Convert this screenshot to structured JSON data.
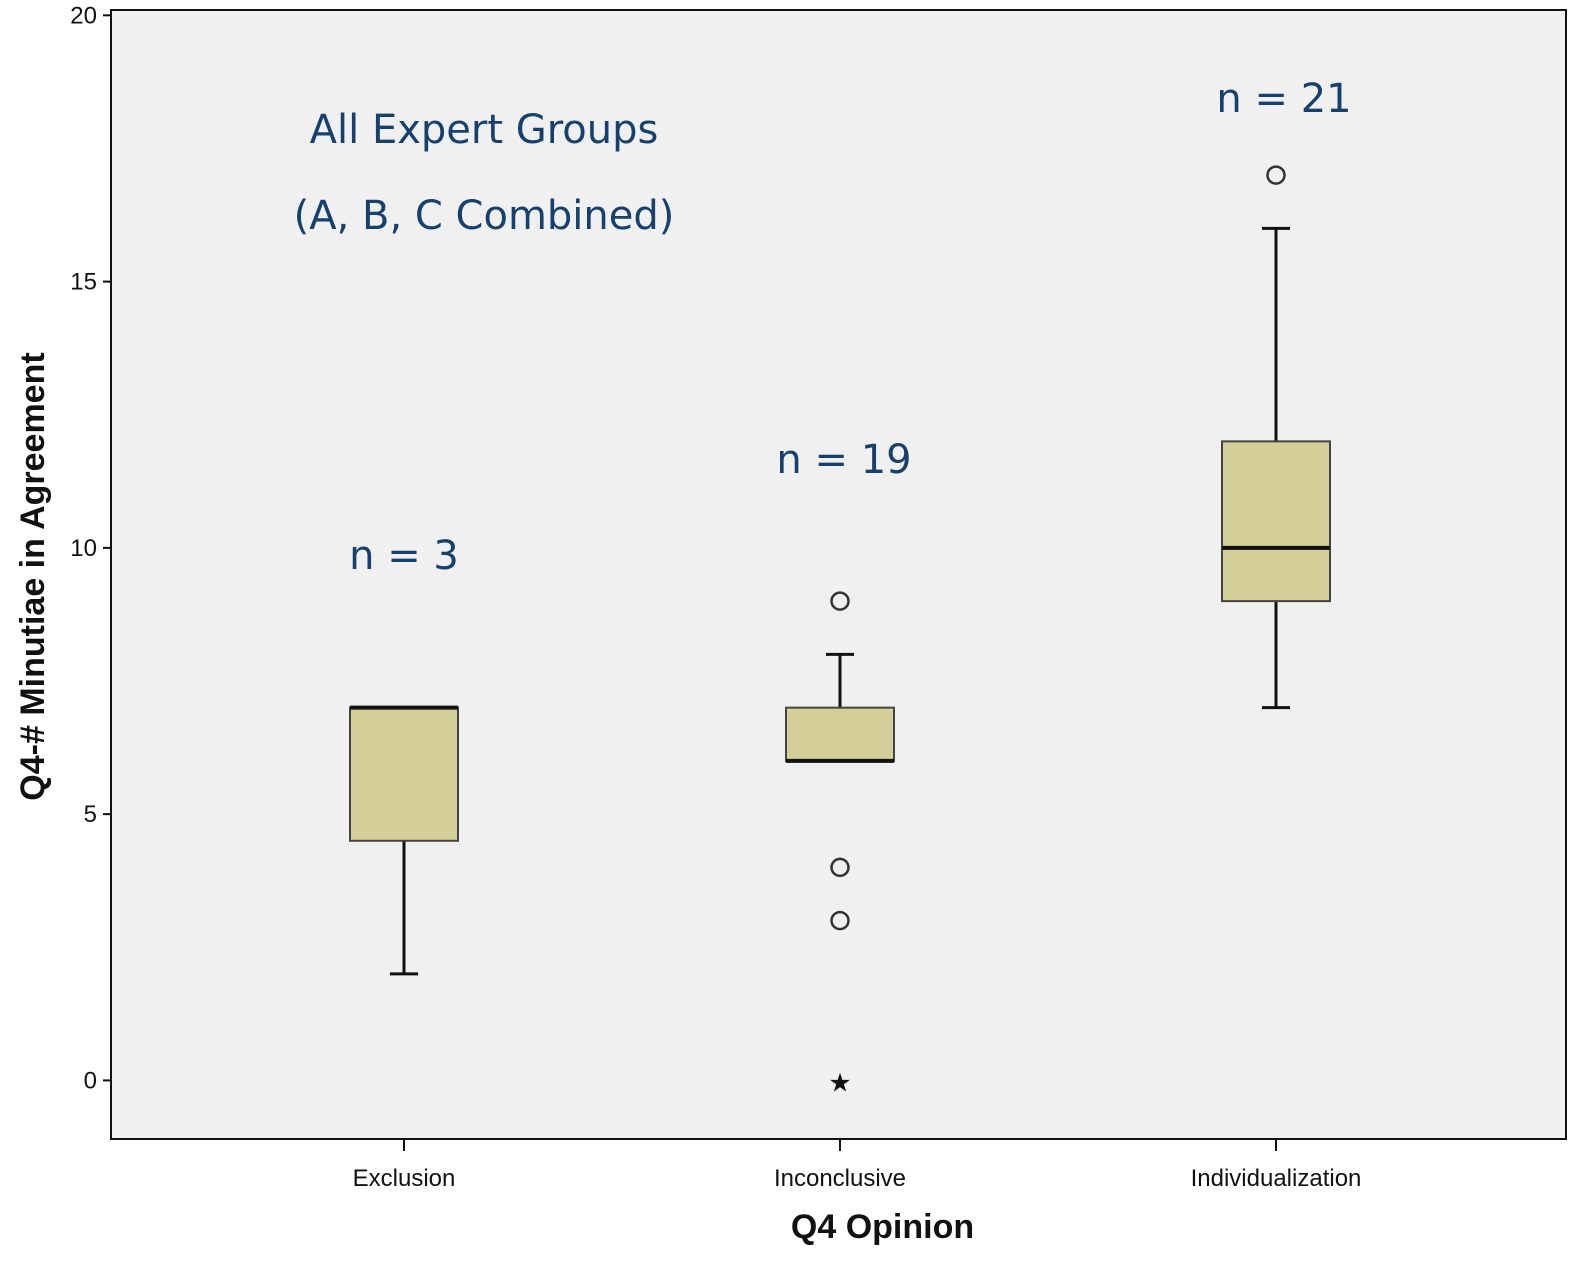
{
  "chart_data": {
    "type": "boxplot",
    "xlabel": "Q4 Opinion",
    "ylabel": "Q4-# Minutiae in Agreement",
    "categories": [
      "Exclusion",
      "Inconclusive",
      "Individualization"
    ],
    "ylim": [
      -1.1,
      20.1
    ],
    "yticks": [
      0,
      5,
      10,
      15,
      20
    ],
    "grid": false,
    "boxes": [
      {
        "category": "Exclusion",
        "whisker_low": 2,
        "q1": 4.5,
        "median": 7,
        "q3": 7,
        "whisker_high": 7,
        "outliers": [],
        "extremes": []
      },
      {
        "category": "Inconclusive",
        "whisker_low": 6,
        "q1": 6,
        "median": 6,
        "q3": 7,
        "whisker_high": 8,
        "outliers": [
          9,
          4,
          3
        ],
        "extremes": [
          0
        ]
      },
      {
        "category": "Individualization",
        "whisker_low": 7,
        "q1": 9,
        "median": 10,
        "q3": 12,
        "whisker_high": 16,
        "outliers": [
          17
        ],
        "extremes": []
      }
    ],
    "annotations": [
      {
        "text": "All Expert Groups"
      },
      {
        "text": "(A, B, C  Combined)"
      },
      {
        "text": "n = 3"
      },
      {
        "text": "n = 19"
      },
      {
        "text": "n = 21"
      }
    ],
    "colors": {
      "plot_background": "#f0f0f0",
      "box_fill": "#d4cf99",
      "stroke": "#111111",
      "annotation": "#16406e"
    }
  }
}
